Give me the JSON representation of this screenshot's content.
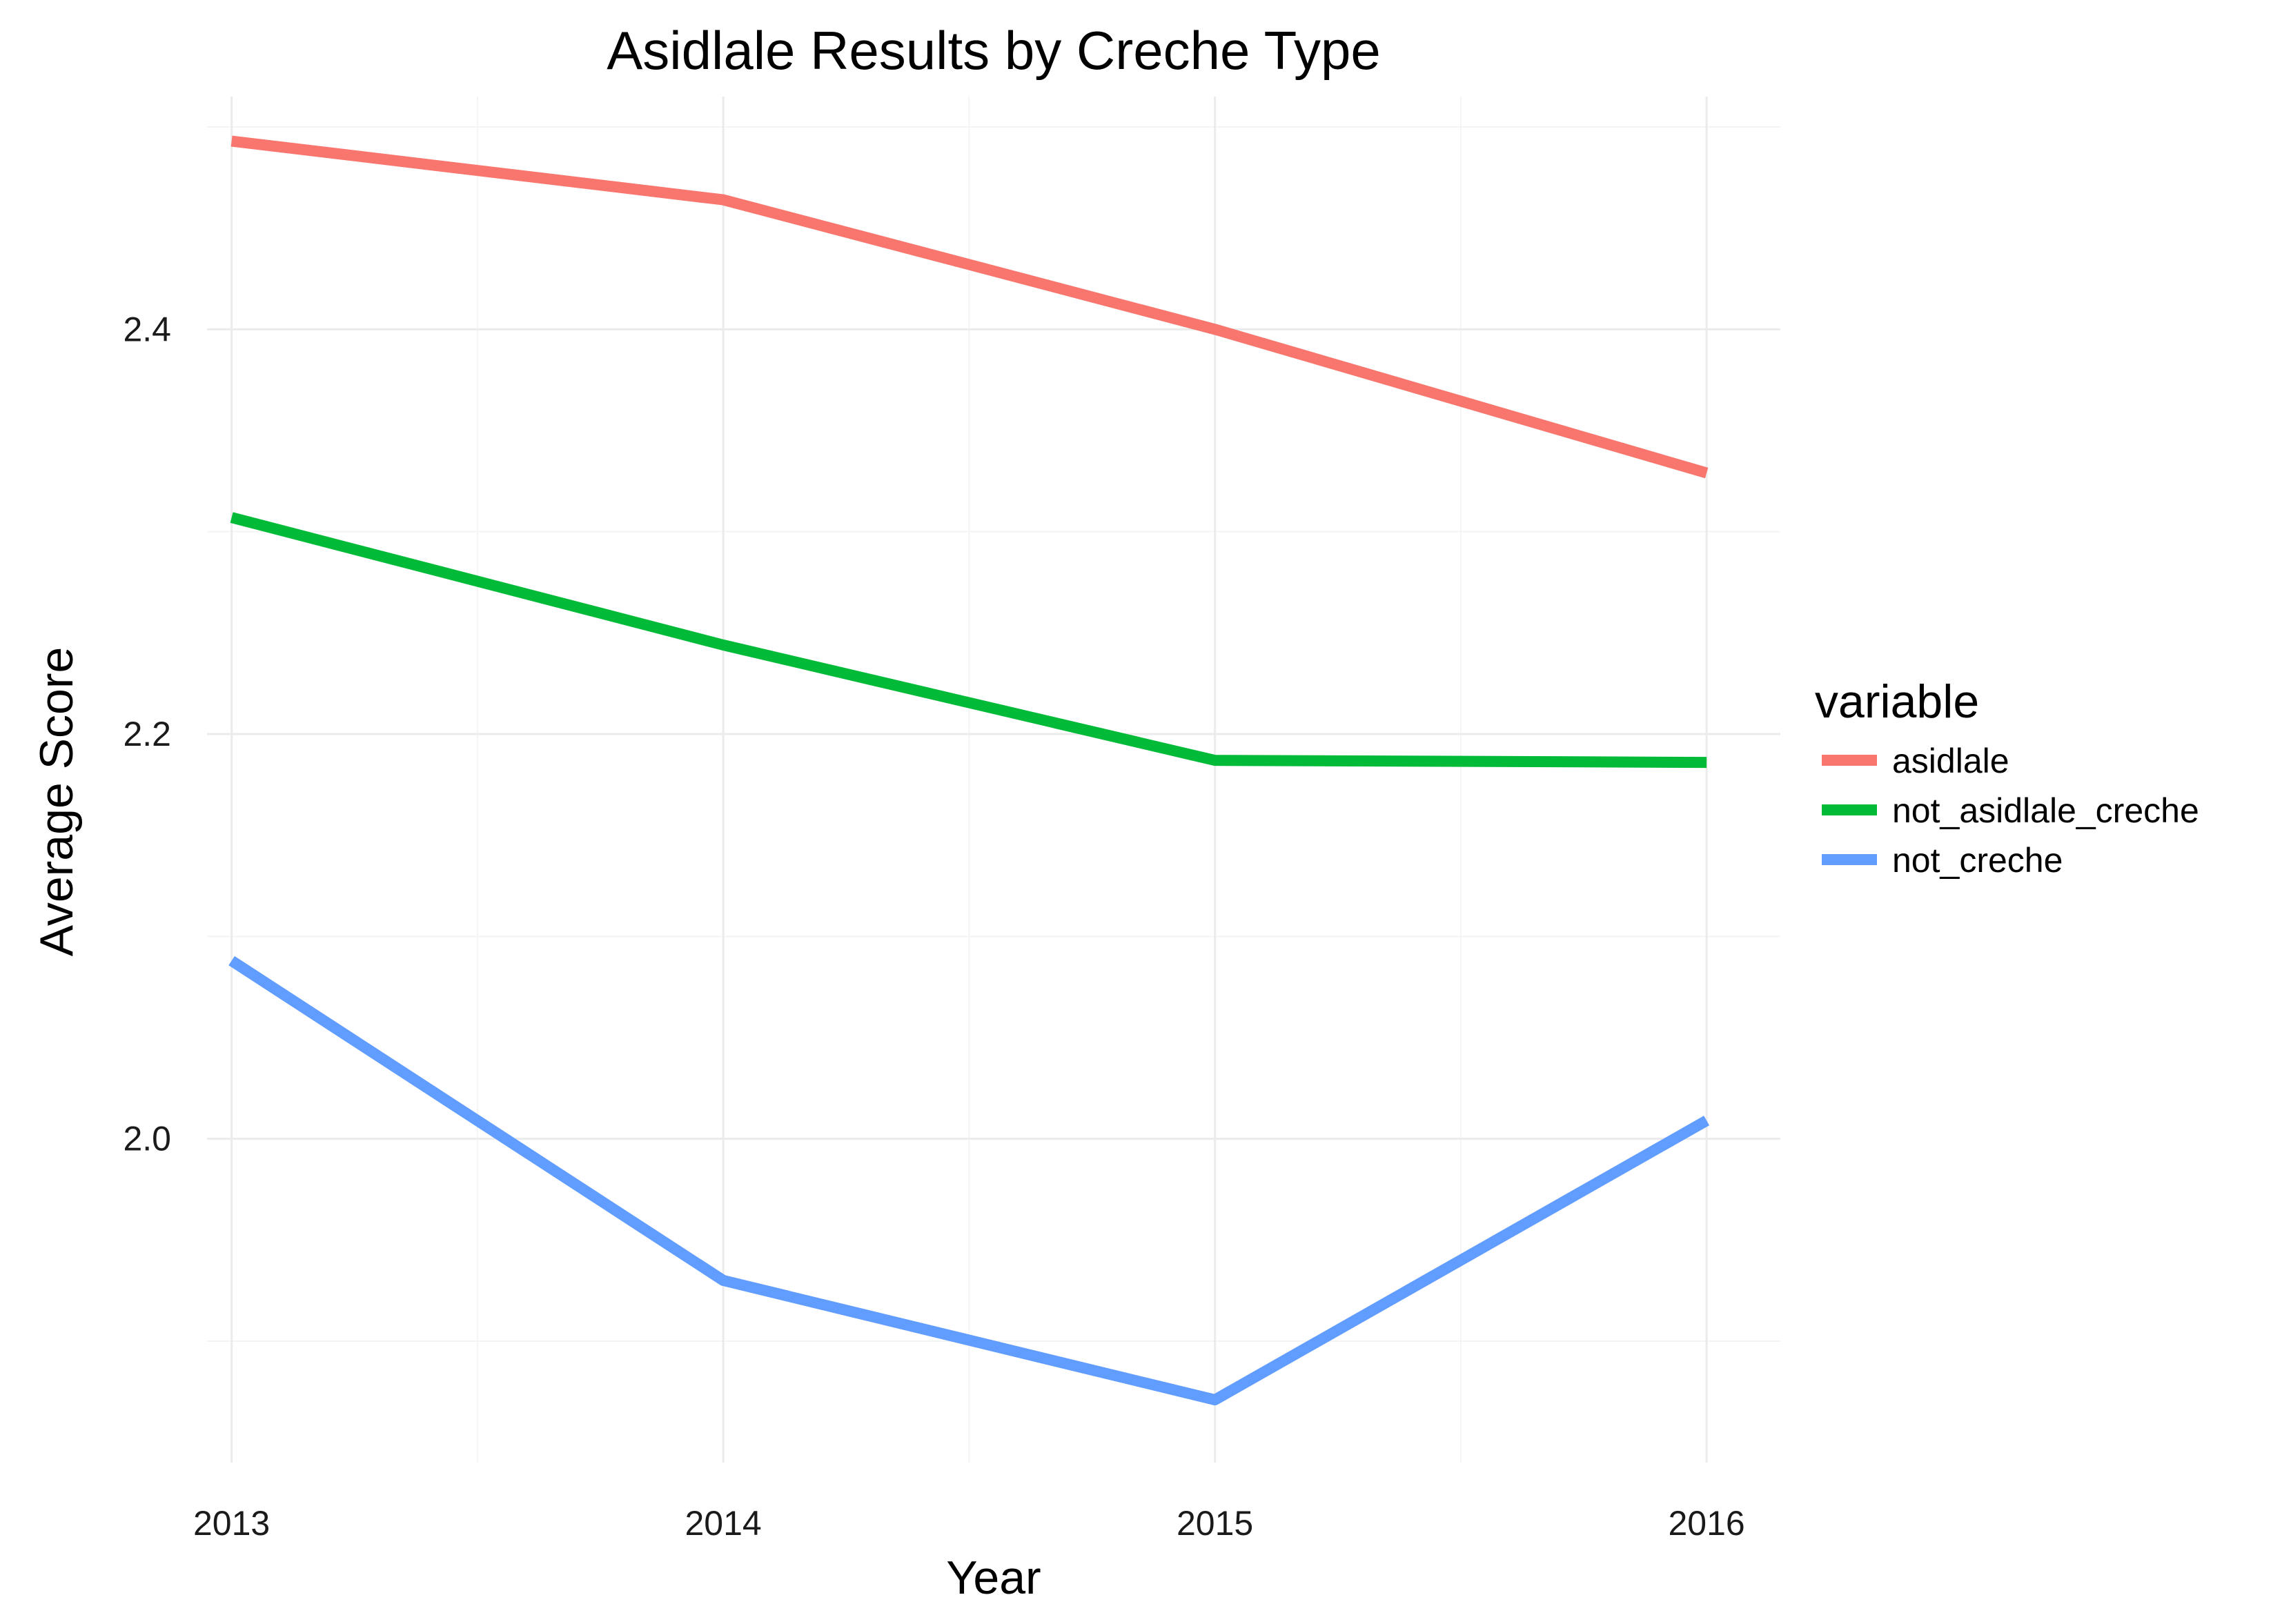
{
  "chart_data": {
    "type": "line",
    "title": "Asidlale Results by Creche Type",
    "xlabel": "Year",
    "ylabel": "Average Score",
    "x": [
      2013,
      2014,
      2015,
      2016
    ],
    "x_ticks": [
      "2013",
      "2014",
      "2015",
      "2016"
    ],
    "y_ticks": [
      "2.0",
      "2.2",
      "2.4"
    ],
    "y_tick_values": [
      2.0,
      2.2,
      2.4
    ],
    "xlim": [
      2012.95,
      2016.15
    ],
    "ylim": [
      1.84,
      2.515
    ],
    "grid": true,
    "legend": {
      "title": "variable",
      "placement": "right"
    },
    "series": [
      {
        "name": "asidlale",
        "color": "#F8766D",
        "values": [
          2.493,
          2.464,
          2.4,
          2.329
        ]
      },
      {
        "name": "not_asidlale_creche",
        "color": "#00BA38",
        "values": [
          2.307,
          2.244,
          2.187,
          2.186
        ]
      },
      {
        "name": "not_creche",
        "color": "#619CFF",
        "values": [
          2.088,
          1.93,
          1.871,
          2.009
        ]
      }
    ]
  }
}
